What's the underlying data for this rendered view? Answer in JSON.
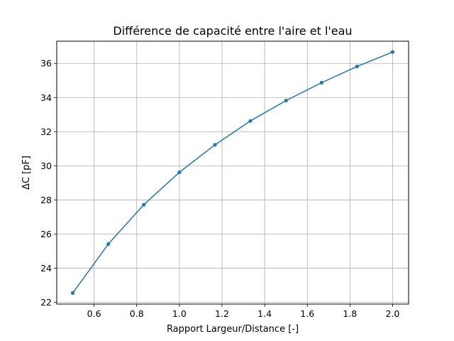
{
  "chart_data": {
    "type": "line",
    "title": "Différence de capacité entre l'aire et l'eau",
    "xlabel": "Rapport Largeur/Distance [-]",
    "ylabel": "ΔC [pF]",
    "xlim": [
      0.425,
      2.075
    ],
    "ylim": [
      21.9,
      37.3
    ],
    "xticks": [
      0.6,
      0.8,
      1.0,
      1.2,
      1.4,
      1.6,
      1.8,
      2.0
    ],
    "xtick_labels": [
      "0.6",
      "0.8",
      "1.0",
      "1.2",
      "1.4",
      "1.6",
      "1.8",
      "2.0"
    ],
    "yticks": [
      22,
      24,
      26,
      28,
      30,
      32,
      34,
      36
    ],
    "ytick_labels": [
      "22",
      "24",
      "26",
      "28",
      "30",
      "32",
      "34",
      "36"
    ],
    "grid": true,
    "series": [
      {
        "color": "#1f77b4",
        "marker": "circle",
        "x": [
          0.5,
          0.667,
          0.833,
          1.0,
          1.167,
          1.333,
          1.5,
          1.667,
          1.833,
          2.0
        ],
        "y": [
          22.55,
          25.42,
          27.72,
          29.62,
          31.23,
          32.63,
          33.82,
          34.87,
          35.82,
          36.67
        ]
      }
    ],
    "colors": {
      "grid": "#b0b0b0",
      "axes": "#000000",
      "background": "#ffffff"
    }
  }
}
